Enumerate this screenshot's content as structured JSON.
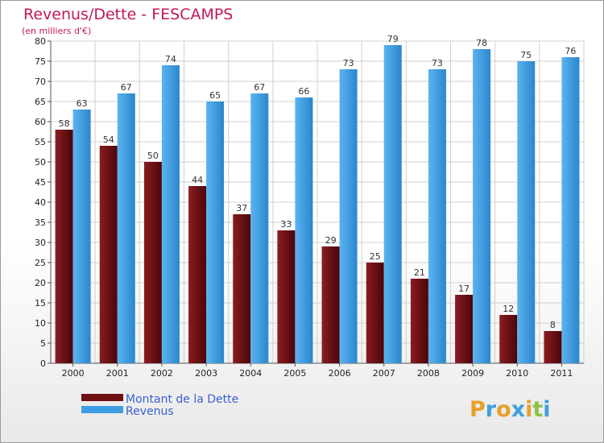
{
  "chart_data": {
    "type": "bar",
    "title": "Revenus/Dette - FESCAMPS",
    "subtitle": "(en milliers d'€)",
    "categories": [
      "2000",
      "2001",
      "2002",
      "2003",
      "2004",
      "2005",
      "2006",
      "2007",
      "2008",
      "2009",
      "2010",
      "2011"
    ],
    "series": [
      {
        "name": "Montant de la Dette",
        "color": "#6e0f14",
        "values": [
          58,
          54,
          50,
          44,
          37,
          33,
          29,
          25,
          21,
          17,
          12,
          8
        ]
      },
      {
        "name": "Revenus",
        "color": "#3f9ee3",
        "values": [
          63,
          67,
          74,
          65,
          67,
          66,
          73,
          79,
          73,
          78,
          75,
          76
        ]
      }
    ],
    "ylim": [
      0,
      80
    ],
    "ytick_step": 5,
    "grid": true,
    "legend": "bottom-left",
    "colors": {
      "title": "#c2185b",
      "legend_text": "#3a5fd6",
      "grid": "#d0d0d0"
    }
  },
  "brand": {
    "letters": [
      "P",
      "r",
      "o",
      "x",
      "i",
      "t",
      "i"
    ],
    "colors": [
      "#e5a02a",
      "#3f9ee3",
      "#e5a02a",
      "#3f9ee3",
      "#e5a02a",
      "#8bc34a",
      "#3f9ee3"
    ]
  }
}
